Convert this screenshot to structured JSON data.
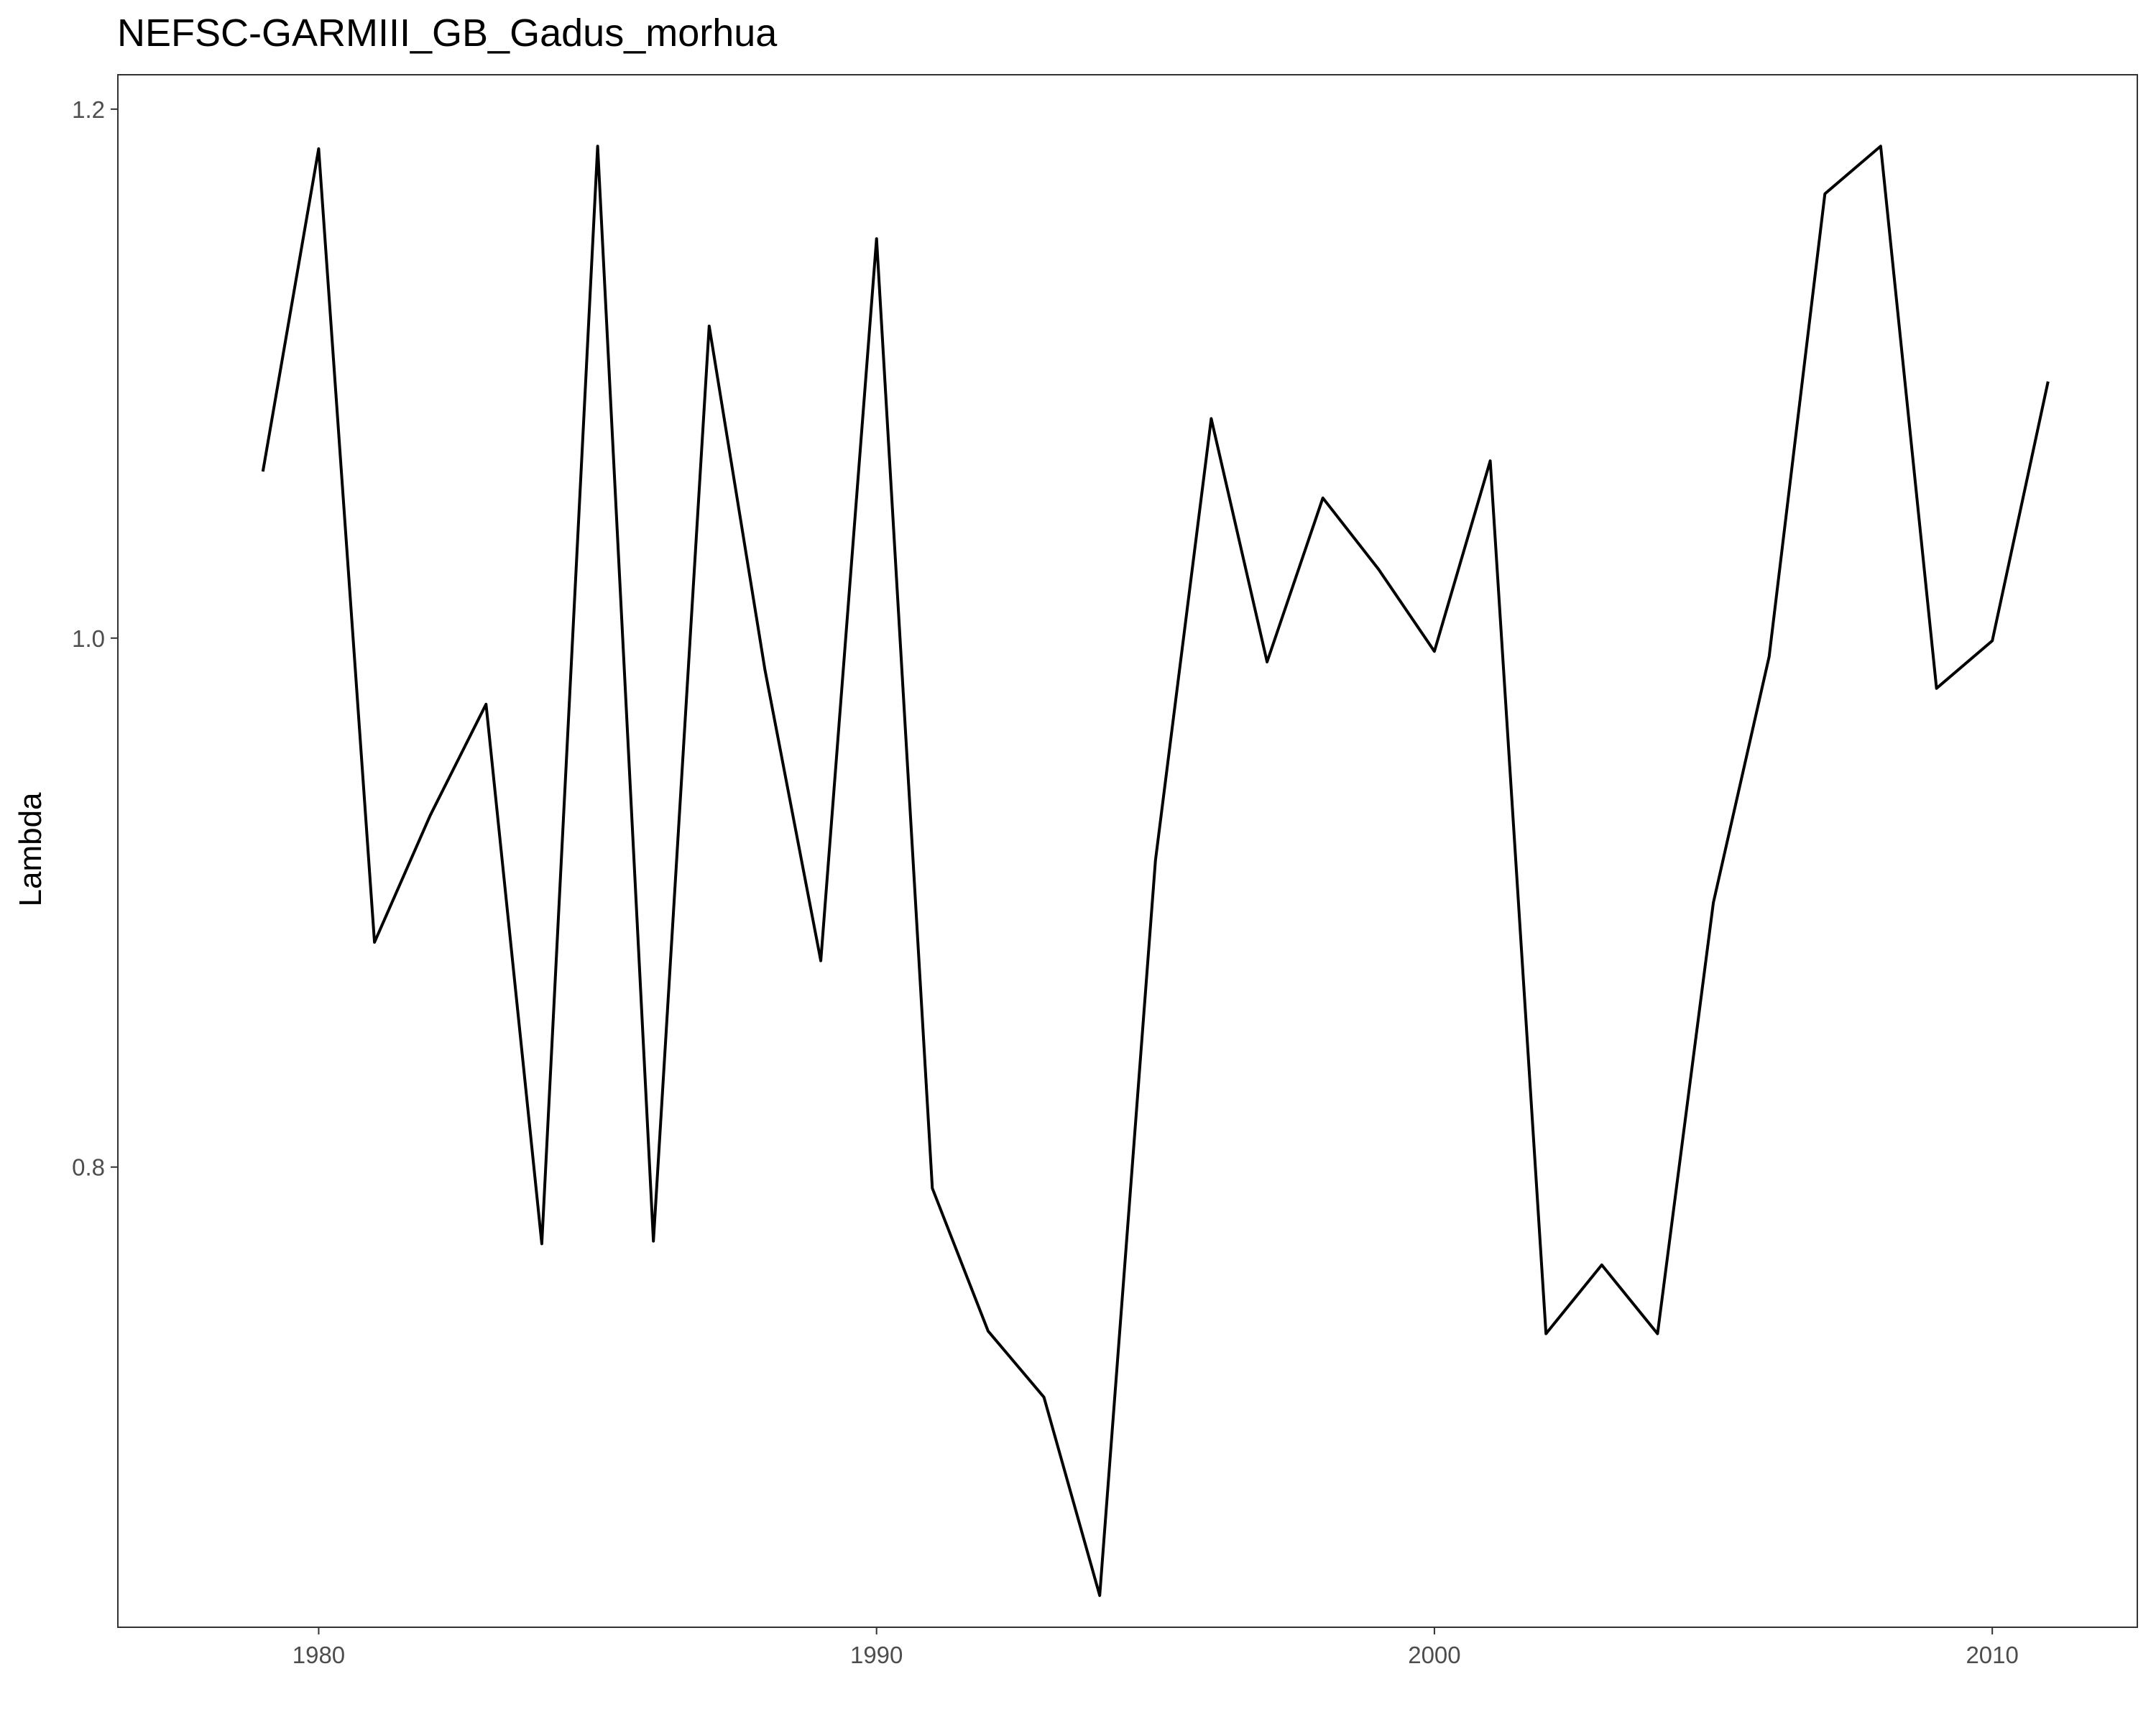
{
  "chart_data": {
    "type": "line",
    "title": "NEFSC-GARMIII_GB_Gadus_morhua",
    "xlabel": "",
    "ylabel": "Lambda",
    "xlim": [
      1976.4,
      2012.6
    ],
    "ylim": [
      0.626,
      1.213
    ],
    "x_ticks": [
      1980,
      1990,
      2000,
      2010
    ],
    "y_ticks": [
      0.8,
      1.0,
      1.2
    ],
    "x_tick_labels": [
      "1980",
      "1990",
      "2000",
      "2010"
    ],
    "y_tick_labels": [
      "0.8",
      "1.0",
      "1.2"
    ],
    "grid": false,
    "legend": "none",
    "line_color": "#000000",
    "series": [
      {
        "x": [
          1979,
          1980,
          1981,
          1982,
          1983,
          1984,
          1985,
          1986,
          1987,
          1988,
          1989,
          1990,
          1991,
          1992,
          1993,
          1994,
          1995,
          1996,
          1997,
          1998,
          1999,
          2000,
          2001,
          2002,
          2003,
          2004,
          2005,
          2006,
          2007,
          2008,
          2009,
          2010,
          2011
        ],
        "values": [
          1.063,
          1.185,
          0.885,
          0.933,
          0.975,
          0.771,
          1.186,
          0.772,
          1.118,
          0.988,
          0.878,
          1.151,
          0.792,
          0.738,
          0.713,
          0.638,
          0.916,
          1.083,
          0.991,
          1.053,
          1.026,
          0.995,
          1.067,
          0.737,
          0.763,
          0.737,
          0.9,
          0.993,
          1.168,
          1.186,
          0.981,
          0.999,
          1.097
        ]
      }
    ]
  }
}
